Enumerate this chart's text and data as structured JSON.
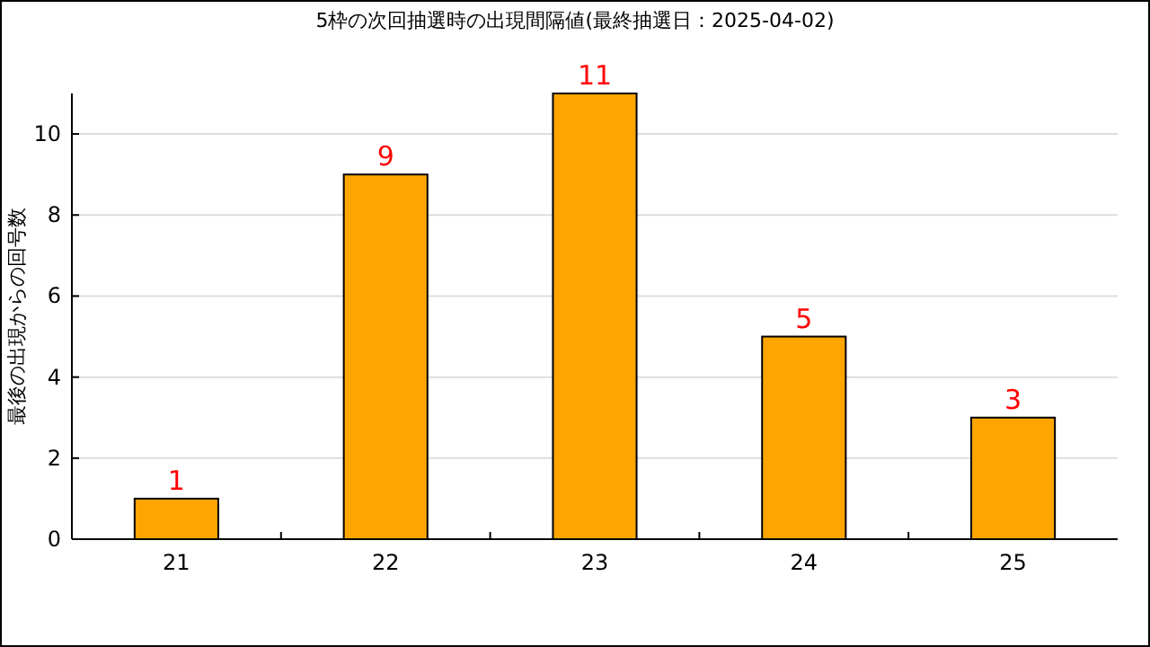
{
  "chart_data": {
    "type": "bar",
    "title": "5枠の次回抽選時の出現間隔値(最終抽選日：2025-04-02)",
    "ylabel": "最後の出現からの回号数",
    "categories": [
      "21",
      "22",
      "23",
      "24",
      "25"
    ],
    "series": [
      {
        "color": "#ffa500",
        "values": [
          1,
          9,
          11,
          5,
          3
        ]
      }
    ],
    "ylim": [
      0,
      11
    ],
    "yticks": [
      0,
      2,
      4,
      6,
      8,
      10
    ],
    "grid": "y",
    "data_labels": true
  }
}
